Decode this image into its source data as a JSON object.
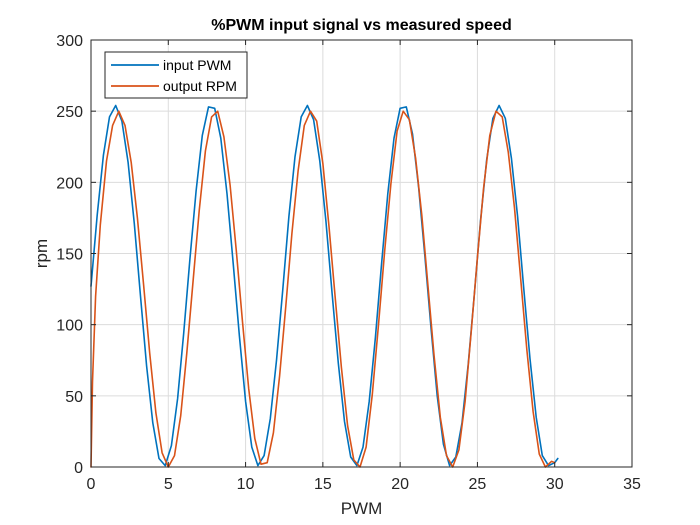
{
  "chart_data": {
    "type": "line",
    "title": "%PWM input signal vs measured speed",
    "xlabel": "PWM",
    "ylabel": "rpm",
    "xlim": [
      0,
      35
    ],
    "ylim": [
      0,
      300
    ],
    "xticks": [
      0,
      5,
      10,
      15,
      20,
      25,
      30,
      35
    ],
    "yticks": [
      0,
      50,
      100,
      150,
      200,
      250,
      300
    ],
    "xtick_labels": [
      "0",
      "5",
      "10",
      "15",
      "20",
      "25",
      "30",
      "35"
    ],
    "ytick_labels": [
      "0",
      "50",
      "100",
      "150",
      "200",
      "250",
      "300"
    ],
    "grid": true,
    "legend_position": "top-left",
    "series": [
      {
        "name": "input PWM",
        "color": "#0072BD",
        "x": [
          0,
          0.4,
          0.8,
          1.2,
          1.6,
          2.0,
          2.4,
          2.8,
          3.2,
          3.6,
          4.0,
          4.4,
          4.8,
          5.2,
          5.6,
          6.0,
          6.4,
          6.8,
          7.2,
          7.6,
          8.0,
          8.4,
          8.8,
          9.2,
          9.6,
          10.0,
          10.4,
          10.8,
          11.2,
          11.6,
          12.0,
          12.4,
          12.8,
          13.2,
          13.6,
          14.0,
          14.4,
          14.8,
          15.2,
          15.6,
          16.0,
          16.4,
          16.8,
          17.2,
          17.6,
          18.0,
          18.4,
          18.8,
          19.2,
          19.6,
          20.0,
          20.4,
          20.8,
          21.2,
          21.6,
          22.0,
          22.4,
          22.8,
          23.2,
          23.6,
          24.0,
          24.4,
          24.8,
          25.2,
          25.6,
          26.0,
          26.4,
          26.8,
          27.2,
          27.6,
          28.0,
          28.4,
          28.8,
          29.2,
          29.6,
          30.0,
          30.2
        ],
        "y": [
          127,
          177,
          219,
          246,
          254,
          243,
          214,
          171,
          120,
          71,
          31,
          6,
          1,
          15,
          48,
          94,
          146,
          194,
          233,
          253,
          252,
          231,
          192,
          143,
          92,
          46,
          14,
          1,
          8,
          34,
          75,
          124,
          176,
          218,
          246,
          254,
          244,
          215,
          173,
          122,
          73,
          32,
          7,
          1,
          14,
          46,
          91,
          143,
          192,
          231,
          252,
          253,
          234,
          196,
          148,
          97,
          50,
          16,
          1,
          7,
          31,
          72,
          121,
          173,
          216,
          245,
          254,
          245,
          217,
          176,
          125,
          76,
          35,
          8,
          1,
          3,
          6
        ]
      },
      {
        "name": "output RPM",
        "color": "#D95319",
        "x": [
          0,
          0.1,
          0.3,
          0.6,
          1.0,
          1.4,
          1.8,
          2.2,
          2.6,
          3.0,
          3.4,
          3.8,
          4.2,
          4.6,
          5.0,
          5.4,
          5.8,
          6.2,
          6.6,
          7.0,
          7.4,
          7.8,
          8.2,
          8.6,
          9.0,
          9.4,
          9.8,
          10.2,
          10.6,
          11.0,
          11.4,
          11.8,
          12.2,
          12.6,
          13.0,
          13.4,
          13.8,
          14.2,
          14.6,
          15.0,
          15.4,
          15.8,
          16.2,
          16.6,
          17.0,
          17.4,
          17.8,
          18.2,
          18.6,
          19.0,
          19.4,
          19.8,
          20.2,
          20.6,
          21.0,
          21.4,
          21.8,
          22.2,
          22.6,
          23.0,
          23.4,
          23.8,
          24.2,
          24.6,
          25.0,
          25.4,
          25.8,
          26.2,
          26.6,
          27.0,
          27.4,
          27.8,
          28.2,
          28.6,
          29.0,
          29.4,
          29.8,
          30.0
        ],
        "y": [
          0,
          60,
          120,
          170,
          215,
          240,
          250,
          240,
          214,
          175,
          128,
          80,
          38,
          10,
          0,
          8,
          36,
          80,
          130,
          180,
          222,
          246,
          250,
          232,
          198,
          152,
          102,
          55,
          20,
          2,
          3,
          24,
          64,
          113,
          164,
          208,
          240,
          250,
          243,
          213,
          169,
          119,
          70,
          29,
          5,
          0,
          14,
          51,
          100,
          152,
          199,
          236,
          250,
          244,
          217,
          177,
          127,
          78,
          35,
          8,
          0,
          12,
          46,
          95,
          147,
          196,
          233,
          250,
          246,
          221,
          182,
          132,
          82,
          39,
          9,
          0,
          4,
          3
        ]
      }
    ]
  }
}
